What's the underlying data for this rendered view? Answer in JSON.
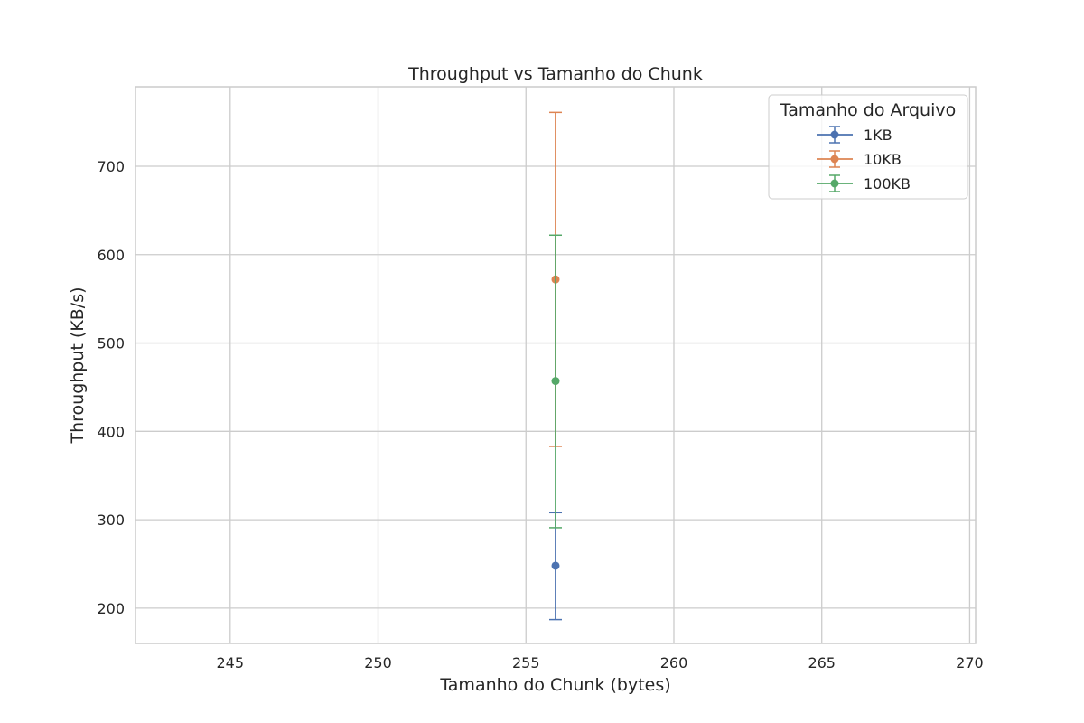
{
  "chart_data": {
    "type": "errorbar",
    "title": "Throughput vs Tamanho do Chunk",
    "xlabel": "Tamanho do Chunk (bytes)",
    "ylabel": "Throughput (KB/s)",
    "xlim": [
      241.8,
      270.2
    ],
    "ylim": [
      160,
      790
    ],
    "xticks": [
      245,
      250,
      255,
      260,
      265,
      270
    ],
    "yticks": [
      200,
      300,
      400,
      500,
      600,
      700
    ],
    "grid": true,
    "legend": {
      "title": "Tamanho do Arquivo",
      "position": "top-right"
    },
    "series": [
      {
        "name": "1KB",
        "color": "#4c72b0",
        "x": [
          256
        ],
        "y": [
          248
        ],
        "yerr_low": [
          187
        ],
        "yerr_high": [
          308
        ]
      },
      {
        "name": "10KB",
        "color": "#dd8452",
        "x": [
          256
        ],
        "y": [
          572
        ],
        "yerr_low": [
          383
        ],
        "yerr_high": [
          761
        ]
      },
      {
        "name": "100KB",
        "color": "#55a868",
        "x": [
          256
        ],
        "y": [
          457
        ],
        "yerr_low": [
          291
        ],
        "yerr_high": [
          622
        ]
      }
    ]
  }
}
